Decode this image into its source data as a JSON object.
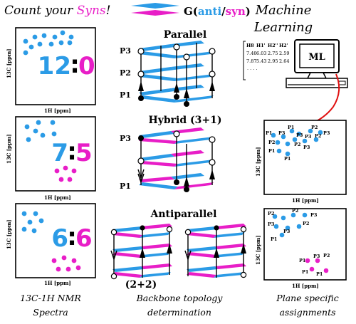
{
  "header": {
    "title_part1": "Count your ",
    "title_syns": "Syns",
    "title_bang": "!",
    "g_prefix": "G(",
    "g_anti": "anti",
    "g_slash": "/",
    "g_syn": "syn",
    "g_suffix": ")"
  },
  "ml": {
    "line1": "Machine",
    "line2": "Learning",
    "box_label": "ML"
  },
  "table": {
    "headers": [
      "H8",
      "H1'",
      "H2''",
      "H2'"
    ],
    "row1": [
      "7.40",
      "6.03",
      "2.75",
      "2.59"
    ],
    "row2": [
      "7.87",
      "5.43",
      "2.95",
      "2.64"
    ],
    "ellipsis": ". . . ."
  },
  "spectra": [
    {
      "anti": "12",
      "sep": ":",
      "syn": "0",
      "xlabel": "1H [ppm]",
      "ylabel": "13C [ppm]"
    },
    {
      "anti": "7",
      "sep": ":",
      "syn": "5",
      "xlabel": "1H [ppm]",
      "ylabel": "13C [ppm]"
    },
    {
      "anti": "6",
      "sep": ":",
      "syn": "6",
      "xlabel": "1H [ppm]",
      "ylabel": "13C [ppm]"
    }
  ],
  "topologies": {
    "parallel": "Parallel",
    "hybrid": "Hybrid (3+1)",
    "antiparallel": "Antiparallel",
    "antiparallel_sub": "(2+2)",
    "p1": "P1",
    "p2": "P2",
    "p3": "P3"
  },
  "assign_top": {
    "labels": [
      "P1",
      "P3",
      "P1",
      "P2",
      "P3",
      "P2",
      "P3",
      "P3",
      "P2",
      "P1",
      "P2",
      "P3",
      "P1"
    ],
    "xlabel": "1H [ppm]",
    "ylabel": "13C [ppm]"
  },
  "assign_bottom": {
    "labels": [
      "P2",
      "P2",
      "P3",
      "P3",
      "P2",
      "P3",
      "P1",
      "P1",
      "P3",
      "P2",
      "P1",
      "P1"
    ],
    "xlabel": "1H [ppm]",
    "ylabel": "13C [ppm]"
  },
  "captions": {
    "nmr1": "13C-1H NMR",
    "nmr2": "Spectra",
    "backbone1": "Backbone topology",
    "backbone2": "determination",
    "plane1": "Plane specific",
    "plane2": "assignments"
  },
  "colors": {
    "anti": "#2b9be6",
    "syn": "#e81ec7",
    "black": "#000000"
  }
}
